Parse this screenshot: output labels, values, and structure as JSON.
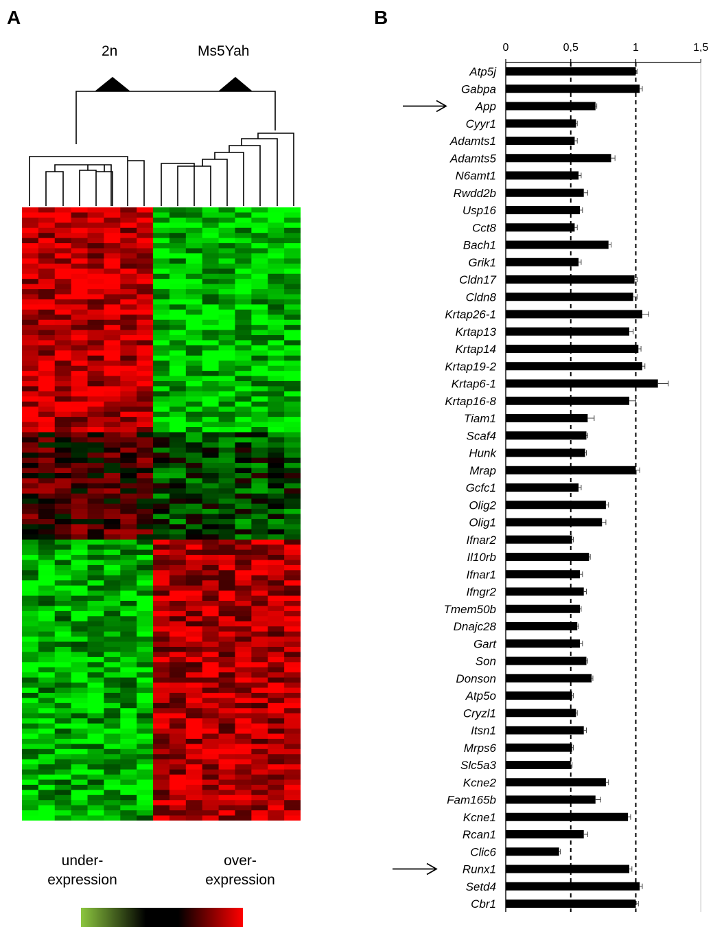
{
  "panels": {
    "a_label": "A",
    "b_label": "B"
  },
  "heatmap": {
    "group_labels": [
      "2n",
      "Ms5Yah"
    ],
    "legend_left": [
      "under-",
      "expression"
    ],
    "legend_right": [
      "over-",
      "expression"
    ],
    "colors": {
      "low": "#00ff00",
      "mid": "#000000",
      "high": "#ff0000",
      "legend_low": "#8cc63f",
      "legend_high": "#ff0000"
    }
  },
  "chart_data": {
    "type": "bar",
    "orientation": "horizontal",
    "categories": [
      "Atp5j",
      "Gabpa",
      "App",
      "Cyyr1",
      "Adamts1",
      "Adamts5",
      "N6amt1",
      "Rwdd2b",
      "Usp16",
      "Cct8",
      "Bach1",
      "Grik1",
      "Cldn17",
      "Cldn8",
      "Krtap26-1",
      "Krtap13",
      "Krtap14",
      "Krtap19-2",
      "Krtap6-1",
      "Krtap16-8",
      "Tiam1",
      "Scaf4",
      "Hunk",
      "Mrap",
      "Gcfc1",
      "Olig2",
      "Olig1",
      "Ifnar2",
      "Il10rb",
      "Ifnar1",
      "Ifngr2",
      "Tmem50b",
      "Dnajc28",
      "Gart",
      "Son",
      "Donson",
      "Atp5o",
      "Cryzl1",
      "Itsn1",
      "Mrps6",
      "Slc5a3",
      "Kcne2",
      "Fam165b",
      "Kcne1",
      "Rcan1",
      "Clic6",
      "Runx1",
      "Setd4",
      "Cbr1"
    ],
    "values": [
      1.0,
      1.03,
      0.69,
      0.54,
      0.53,
      0.81,
      0.56,
      0.6,
      0.57,
      0.53,
      0.79,
      0.56,
      0.99,
      0.98,
      1.05,
      0.95,
      1.02,
      1.05,
      1.17,
      0.95,
      0.63,
      0.62,
      0.61,
      1.0,
      0.56,
      0.77,
      0.74,
      0.51,
      0.64,
      0.57,
      0.6,
      0.57,
      0.55,
      0.57,
      0.62,
      0.66,
      0.51,
      0.54,
      0.6,
      0.51,
      0.5,
      0.77,
      0.69,
      0.94,
      0.6,
      0.41,
      0.95,
      1.03,
      1.0
    ],
    "errors": [
      0.01,
      0.02,
      0.01,
      0.01,
      0.02,
      0.03,
      0.02,
      0.03,
      0.02,
      0.02,
      0.02,
      0.02,
      0.02,
      0.03,
      0.05,
      0.03,
      0.02,
      0.02,
      0.08,
      0.05,
      0.05,
      0.01,
      0.01,
      0.03,
      0.02,
      0.02,
      0.03,
      0.01,
      0.01,
      0.02,
      0.02,
      0.01,
      0.01,
      0.02,
      0.01,
      0.01,
      0.01,
      0.01,
      0.02,
      0.01,
      0.01,
      0.02,
      0.04,
      0.02,
      0.03,
      0.01,
      0.02,
      0.02,
      0.02
    ],
    "xlim": [
      0,
      1.5
    ],
    "xticks": [
      "0",
      "0,5",
      "1",
      "1,5"
    ],
    "xtick_values": [
      0,
      0.5,
      1,
      1.5
    ],
    "reference_lines": [
      0.5,
      1
    ],
    "arrows": [
      "App",
      "Runx1"
    ],
    "bar_color": "#000000"
  }
}
